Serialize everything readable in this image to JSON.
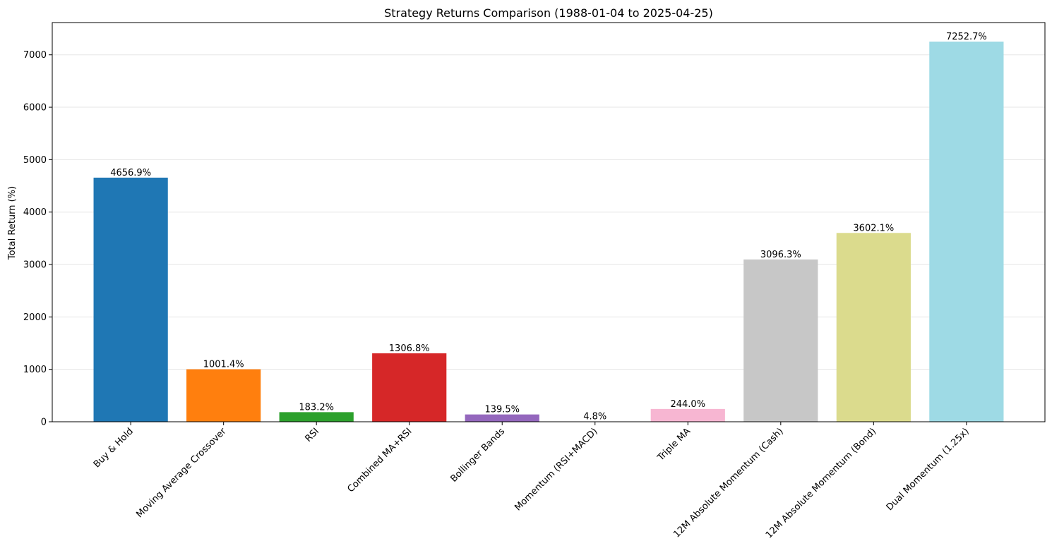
{
  "chart_data": {
    "type": "bar",
    "title": "Strategy Returns Comparison (1988-01-04 to 2025-04-25)",
    "xlabel": "",
    "ylabel": "Total Return (%)",
    "ylim": [
      0,
      7615.3
    ],
    "yticks": [
      0,
      1000,
      2000,
      3000,
      4000,
      5000,
      6000,
      7000
    ],
    "grid": "y",
    "categories": [
      "Buy & Hold",
      "Moving Average Crossover",
      "RSI",
      "Combined MA+RSI",
      "Bollinger Bands",
      "Momentum (RSI+MACD)",
      "Triple MA",
      "12M Absolute Momentum (Cash)",
      "12M Absolute Momentum (Bond)",
      "Dual Momentum (1.25x)"
    ],
    "values": [
      4656.9,
      1001.4,
      183.2,
      1306.8,
      139.5,
      4.8,
      244.0,
      3096.3,
      3602.1,
      7252.7
    ],
    "labels": [
      "4656.9%",
      "1001.4%",
      "183.2%",
      "1306.8%",
      "139.5%",
      "4.8%",
      "244.0%",
      "3096.3%",
      "3602.1%",
      "7252.7%"
    ],
    "colors": [
      "#1f77b4",
      "#ff7f0e",
      "#2ca02c",
      "#d62728",
      "#9467bd",
      "#8c564b",
      "#f7b6d2",
      "#c7c7c7",
      "#dbdb8d",
      "#9edae5"
    ]
  }
}
